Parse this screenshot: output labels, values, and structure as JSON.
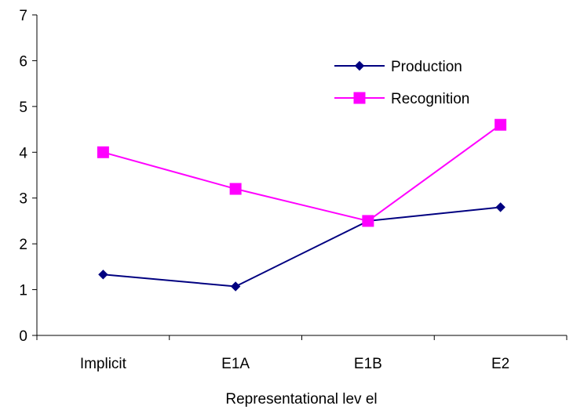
{
  "chart_data": {
    "type": "line",
    "categories": [
      "Implicit",
      "E1A",
      "E1B",
      "E2"
    ],
    "series": [
      {
        "name": "Production",
        "values": [
          1.33,
          1.07,
          2.5,
          2.8
        ],
        "color": "#000080",
        "marker": "diamond"
      },
      {
        "name": "Recognition",
        "values": [
          4.0,
          3.2,
          2.5,
          4.6
        ],
        "color": "#FF00FF",
        "marker": "square"
      }
    ],
    "xlabel": "Representational lev el",
    "ylabel": "",
    "ylim": [
      0,
      7
    ],
    "yticks": [
      "0",
      "1",
      "2",
      "3",
      "4",
      "5",
      "6",
      "7"
    ],
    "grid": false,
    "legend": "top-right"
  }
}
